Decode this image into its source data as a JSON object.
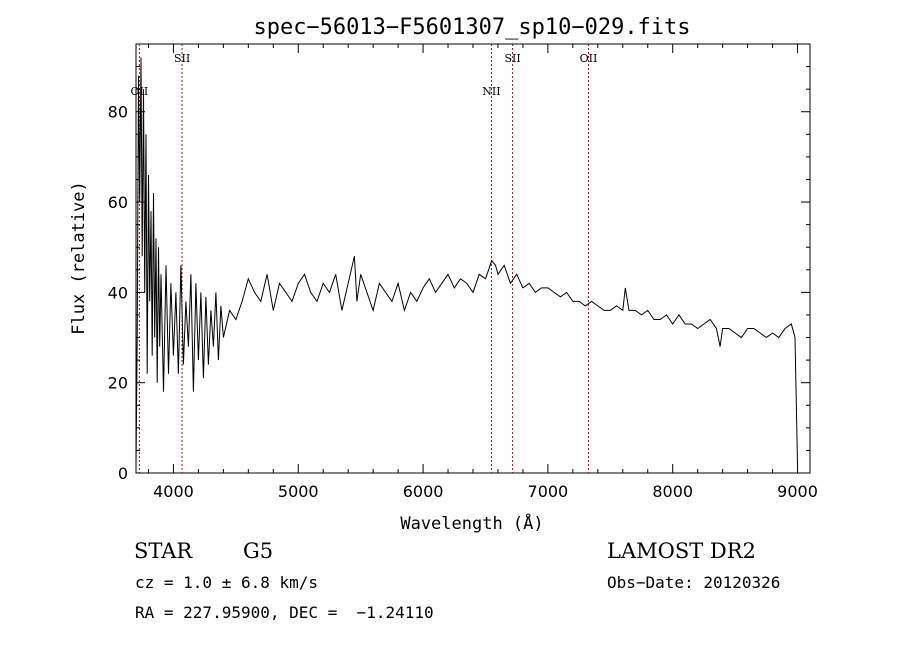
{
  "chart_data": {
    "type": "line",
    "title": "spec−56013−F5601307_sp10−029.fits",
    "xlabel": "Wavelength (Å)",
    "ylabel": "Flux (relative)",
    "xlim": [
      3700,
      9100
    ],
    "ylim": [
      0,
      95
    ],
    "x_ticks": [
      4000,
      5000,
      6000,
      7000,
      8000,
      9000
    ],
    "y_ticks": [
      0,
      20,
      40,
      60,
      80
    ],
    "grid": false,
    "line_color": "#000000",
    "marker_color": "#8b1a1a",
    "series": [
      {
        "x": [
          3700,
          3710,
          3720,
          3730,
          3740,
          3750,
          3760,
          3770,
          3780,
          3790,
          3800,
          3810,
          3820,
          3830,
          3840,
          3850,
          3860,
          3870,
          3880,
          3890,
          3900,
          3920,
          3940,
          3960,
          3980,
          4000,
          4020,
          4040,
          4060,
          4080,
          4100,
          4120,
          4140,
          4160,
          4180,
          4200,
          4220,
          4240,
          4260,
          4280,
          4300,
          4320,
          4340,
          4360,
          4380,
          4400,
          4450,
          4500,
          4550,
          4600,
          4650,
          4700,
          4750,
          4800,
          4850,
          4900,
          4950,
          5000,
          5050,
          5100,
          5150,
          5200,
          5250,
          5300,
          5350,
          5400,
          5450,
          5470,
          5500,
          5550,
          5600,
          5650,
          5700,
          5750,
          5800,
          5850,
          5900,
          5950,
          6000,
          6050,
          6100,
          6150,
          6200,
          6250,
          6300,
          6350,
          6400,
          6450,
          6500,
          6550,
          6580,
          6600,
          6650,
          6700,
          6750,
          6800,
          6850,
          6900,
          6950,
          7000,
          7050,
          7100,
          7150,
          7200,
          7250,
          7300,
          7350,
          7400,
          7450,
          7500,
          7550,
          7600,
          7620,
          7650,
          7700,
          7750,
          7800,
          7850,
          7900,
          7950,
          8000,
          8050,
          8100,
          8150,
          8200,
          8250,
          8300,
          8350,
          8380,
          8400,
          8450,
          8500,
          8550,
          8600,
          8650,
          8700,
          8750,
          8800,
          8850,
          8900,
          8950,
          8980,
          9000
        ],
        "y": [
          1,
          30,
          88,
          60,
          92,
          48,
          85,
          40,
          75,
          22,
          66,
          38,
          58,
          26,
          62,
          30,
          52,
          20,
          50,
          28,
          44,
          18,
          46,
          22,
          42,
          26,
          40,
          22,
          46,
          24,
          38,
          28,
          44,
          18,
          42,
          25,
          40,
          21,
          39,
          24,
          36,
          28,
          40,
          25,
          37,
          30,
          36,
          34,
          38,
          43,
          40,
          38,
          44,
          36,
          42,
          40,
          38,
          42,
          44,
          40,
          38,
          42,
          40,
          44,
          36,
          42,
          48,
          38,
          44,
          40,
          36,
          42,
          40,
          38,
          42,
          36,
          40,
          38,
          41,
          43,
          40,
          42,
          44,
          41,
          43,
          42,
          40,
          44,
          43,
          47,
          46,
          44,
          46,
          42,
          44,
          41,
          42,
          40,
          41,
          41,
          40,
          39,
          40,
          38,
          38,
          37,
          38,
          37,
          36,
          36,
          37,
          36,
          41,
          36,
          36,
          35,
          36,
          34,
          34,
          35,
          33,
          35,
          33,
          33,
          32,
          33,
          34,
          32,
          28,
          32,
          32,
          31,
          30,
          32,
          32,
          31,
          30,
          31,
          30,
          32,
          33,
          30,
          2
        ]
      }
    ],
    "line_markers": [
      {
        "label": "OII",
        "x": 3727,
        "label_pos": "mid"
      },
      {
        "label": "SII",
        "x": 4069,
        "label_pos": "high"
      },
      {
        "label": "NII",
        "x": 6548,
        "label_pos": "mid"
      },
      {
        "label": "SII",
        "x": 6717,
        "label_pos": "high"
      },
      {
        "label": "OII",
        "x": 7325,
        "label_pos": "high"
      }
    ]
  },
  "info": {
    "object_class": "STAR",
    "subclass": "G5",
    "survey": "LAMOST DR2",
    "redshift": "cz = 1.0 ± 6.8 km/s",
    "obs_date": "Obs−Date: 20120326",
    "coords": "RA = 227.95900, DEC =  −1.24110"
  }
}
